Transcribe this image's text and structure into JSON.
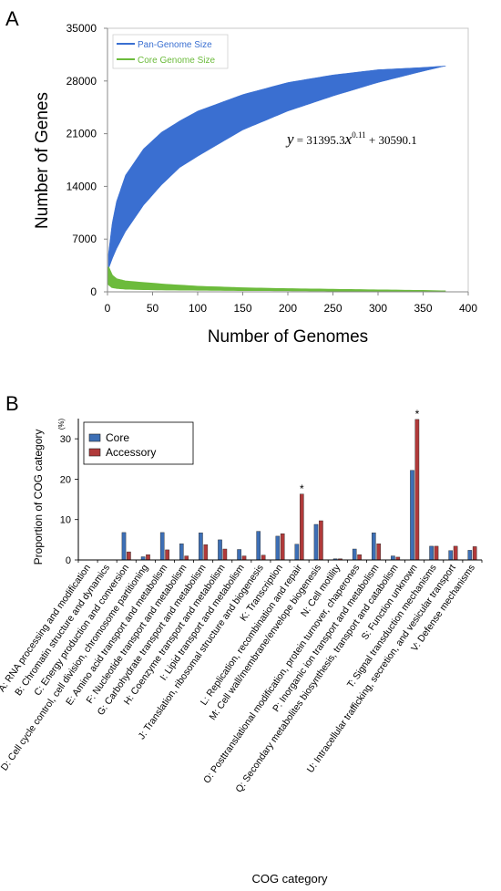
{
  "panels": {
    "a": "A",
    "b": "B"
  },
  "chart_data": [
    {
      "type": "scatter",
      "xlabel": "Number of Genomes",
      "ylabel": "Number of Genes",
      "xlim": [
        0,
        400
      ],
      "ylim": [
        0,
        35000
      ],
      "xticks": [
        0,
        50,
        100,
        150,
        200,
        250,
        300,
        350,
        400
      ],
      "yticks": [
        0,
        7000,
        14000,
        21000,
        28000,
        35000
      ],
      "legend_position": "top-left",
      "grid": false,
      "equation": {
        "prefix": "y",
        "middle": " = 31395.3",
        "var": "x",
        "exponent": "0.11",
        "suffix": " + 30590.1"
      },
      "series": [
        {
          "name": "Pan-Genome Size",
          "color": "#3a6fd1",
          "x": [
            1,
            5,
            10,
            20,
            40,
            60,
            80,
            100,
            150,
            200,
            250,
            300,
            350,
            375
          ],
          "y_min": [
            3000,
            4300,
            5700,
            8000,
            11500,
            14200,
            16500,
            18000,
            21500,
            24000,
            26000,
            27800,
            29300,
            30000
          ],
          "y_max": [
            5000,
            9000,
            12000,
            15500,
            19000,
            21200,
            22700,
            24000,
            26200,
            27800,
            28800,
            29500,
            29800,
            30000
          ]
        },
        {
          "name": "Core Genome Size",
          "color": "#6cbb3c",
          "x": [
            1,
            5,
            10,
            20,
            40,
            60,
            100,
            150,
            200,
            250,
            300,
            350,
            375
          ],
          "y_min": [
            1000,
            600,
            500,
            400,
            330,
            300,
            260,
            220,
            190,
            160,
            130,
            100,
            90
          ],
          "y_max": [
            3300,
            2200,
            1700,
            1400,
            1200,
            1000,
            700,
            500,
            380,
            300,
            220,
            140,
            90
          ]
        }
      ]
    },
    {
      "type": "bar",
      "xlabel": "COG category",
      "ylabel": "Proportion of COG category",
      "ylabel_unit": "(%)",
      "ylim": [
        0,
        35
      ],
      "yticks": [
        0,
        10,
        20,
        30
      ],
      "legend_position": "top-left",
      "grid": false,
      "categories": [
        "A: RNA processing and modification",
        "B: Chromatin structure and dynamics",
        "C: Energy production and conversion",
        "D: Cell cycle control, cell division, chromosome partitioning",
        "E: Amino acid transport and metabolism",
        "F: Nucleotide transport and metabolism",
        "G: Carbohydrate transport and metabolism",
        "H: Coenzyme transport and metabolism",
        "I: Lipid transport and metabolism",
        "J: Translation, ribosomal structure and biogenesis",
        "K: Transcription",
        "L: Replication, recombination and repair",
        "M: Cell wall/membrane/envelope biogenesis",
        "N: Cell motility",
        "O: Posttranslational modification, protein turnover, chaperones",
        "P: Inorganic ion transport and metabolism",
        "Q: Secondary metabolites biosynthesis, transport and catabolism",
        "S: Function unknown",
        "T: Signal transduction mechanisms",
        "U: Intracellular trafficking, secretion, and vesicular transport",
        "V: Defense mechanisms"
      ],
      "series": [
        {
          "name": "Core",
          "color": "#3d6fb5",
          "values": [
            0,
            0,
            6.8,
            0.8,
            6.8,
            4.0,
            6.7,
            5.0,
            2.6,
            7.1,
            5.9,
            3.9,
            8.8,
            0.3,
            2.7,
            6.7,
            1.0,
            22.2,
            3.4,
            2.3,
            2.4
          ]
        },
        {
          "name": "Accessory",
          "color": "#b03a3a",
          "values": [
            0,
            0,
            2.0,
            1.3,
            2.5,
            1.0,
            3.8,
            2.7,
            1.0,
            1.2,
            6.5,
            16.3,
            9.7,
            0.3,
            1.3,
            4.0,
            0.7,
            34.8,
            3.4,
            3.4,
            3.3
          ]
        }
      ],
      "annotations": [
        {
          "category": "L: Replication, recombination and repair",
          "series": "Accessory",
          "text": "*"
        },
        {
          "category": "S: Function unknown",
          "series": "Accessory",
          "text": "*"
        }
      ]
    }
  ]
}
